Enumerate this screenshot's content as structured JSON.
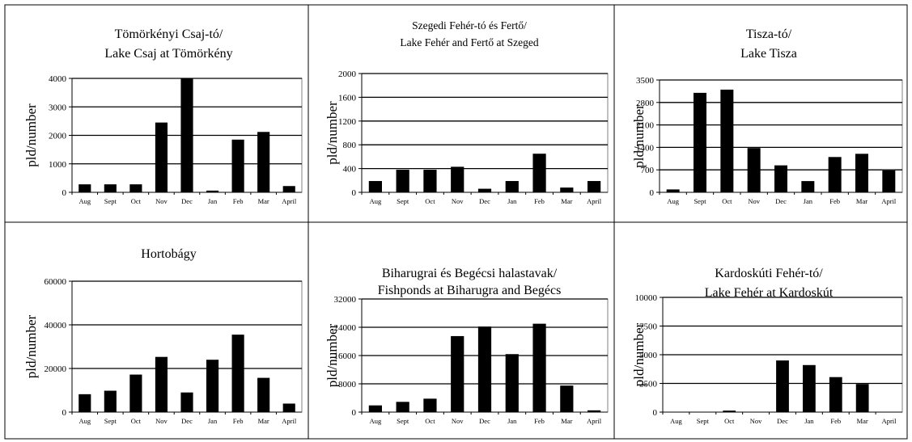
{
  "chart_data": [
    {
      "type": "bar",
      "title": [
        "Tömörkényi Csaj-tó/",
        "Lake Csaj at Tömörkény"
      ],
      "ylabel": "pld/number",
      "categories": [
        "Aug",
        "Sept",
        "Oct",
        "Nov",
        "Dec",
        "Jan",
        "Feb",
        "Mar",
        "April"
      ],
      "values": [
        280,
        280,
        280,
        2450,
        4000,
        60,
        1850,
        2120,
        220
      ],
      "yticks": [
        0,
        1000,
        2000,
        3000,
        4000
      ],
      "ylim": [
        0,
        4000
      ],
      "grid": true
    },
    {
      "type": "bar",
      "title": [
        "Szegedi Fehér-tó és Fertő/",
        "Lake Fehér and Fertő at Szeged"
      ],
      "ylabel": "pld/number",
      "categories": [
        "Aug",
        "Sept",
        "Oct",
        "Nov",
        "Dec",
        "Jan",
        "Feb",
        "Mar",
        "April"
      ],
      "values": [
        190,
        380,
        380,
        430,
        60,
        190,
        650,
        80,
        190
      ],
      "yticks": [
        0,
        400,
        800,
        1200,
        1600,
        2000
      ],
      "ylim": [
        0,
        2000
      ],
      "grid": true
    },
    {
      "type": "bar",
      "title": [
        "Tisza-tó/",
        "Lake Tisza"
      ],
      "ylabel": "pld/number",
      "categories": [
        "Aug",
        "Sept",
        "Oct",
        "Nov",
        "Dec",
        "Jan",
        "Feb",
        "Mar",
        "April"
      ],
      "values": [
        90,
        3100,
        3200,
        1380,
        840,
        350,
        1100,
        1200,
        680
      ],
      "yticks": [
        0,
        700,
        1400,
        2100,
        2800,
        3500
      ],
      "ylim": [
        0,
        3500
      ],
      "grid": true
    },
    {
      "type": "bar",
      "title": [
        "Hortobágy"
      ],
      "ylabel": "pld/number",
      "categories": [
        "Aug",
        "Sept",
        "Oct",
        "Nov",
        "Dec",
        "Jan",
        "Feb",
        "Mar",
        "April"
      ],
      "values": [
        8200,
        9800,
        17200,
        25300,
        9000,
        24000,
        35500,
        15700,
        3900
      ],
      "yticks": [
        0,
        20000,
        40000,
        60000
      ],
      "ylim": [
        0,
        60000
      ],
      "grid": true
    },
    {
      "type": "bar",
      "title": [
        "Biharugrai és Begécsi halastavak/",
        "Fishponds at Biharugra and Begécs"
      ],
      "ylabel": "pld/number",
      "categories": [
        "Aug",
        "Sept",
        "Oct",
        "Nov",
        "Dec",
        "Jan",
        "Feb",
        "Mar",
        "April"
      ],
      "values": [
        1900,
        2900,
        3800,
        21500,
        24200,
        16400,
        25000,
        7500,
        500
      ],
      "yticks": [
        0,
        8000,
        16000,
        24000,
        32000
      ],
      "ylim": [
        0,
        32000
      ],
      "grid": true
    },
    {
      "type": "bar",
      "title": [
        "Kardoskúti Fehér-tó/",
        "Lake Fehér at Kardoskút"
      ],
      "ylabel": "pld/number",
      "categories": [
        "Aug",
        "Sept",
        "Oct",
        "Nov",
        "Dec",
        "Jan",
        "Feb",
        "Mar",
        "April"
      ],
      "values": [
        0,
        0,
        130,
        0,
        4500,
        4100,
        3050,
        2450,
        0
      ],
      "yticks": [
        0,
        2500,
        5000,
        7500,
        10000
      ],
      "ylim": [
        0,
        10000
      ],
      "grid": true
    }
  ]
}
